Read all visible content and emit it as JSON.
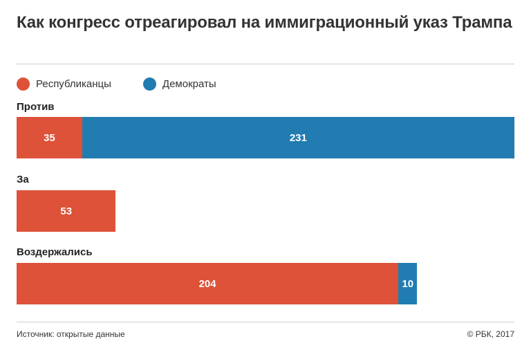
{
  "title": "Как конгресс отреагировал на иммиграционный указ Трампа",
  "legend": [
    {
      "label": "Республиканцы",
      "color": "#dd5238"
    },
    {
      "label": "Демократы",
      "color": "#217cb1"
    }
  ],
  "chart_data": {
    "type": "bar",
    "orientation": "horizontal",
    "stacked": true,
    "title": "Как конгресс отреагировал на иммиграционный указ Трампа",
    "categories": [
      "Против",
      "За",
      "Воздержались"
    ],
    "series": [
      {
        "name": "Республиканцы",
        "color": "#dd5238",
        "values": [
          35,
          53,
          204
        ]
      },
      {
        "name": "Демократы",
        "color": "#217cb1",
        "values": [
          231,
          0,
          10
        ]
      }
    ],
    "xlim": [
      0,
      266
    ],
    "grid": false,
    "legend_position": "top-left"
  },
  "footer": {
    "source": "Источник: открытые данные",
    "copyright": "© РБК, 2017"
  }
}
